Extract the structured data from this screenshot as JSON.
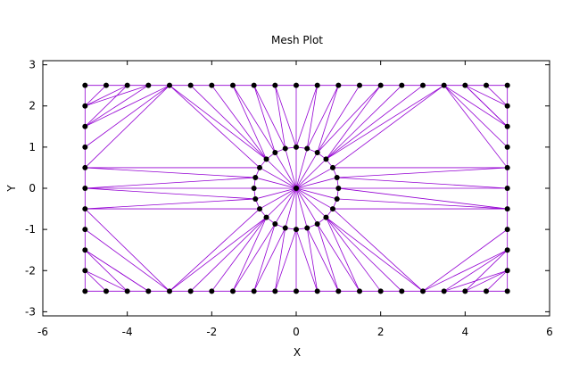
{
  "chart_data": {
    "type": "scatter",
    "title": "Mesh Plot",
    "xlabel": "X",
    "ylabel": "Y",
    "xlim": [
      -6,
      6
    ],
    "ylim": [
      -3.1,
      3.1
    ],
    "xticks": [
      -6,
      -4,
      -2,
      0,
      2,
      4,
      6
    ],
    "yticks": [
      -3,
      -2,
      -1,
      0,
      1,
      2,
      3
    ],
    "grid": false,
    "edge_color": "#9400d3",
    "node_color": "#000000",
    "boundary_nodes": {
      "top": [
        [
          -5,
          2.5
        ],
        [
          -4.5,
          2.5
        ],
        [
          -4,
          2.5
        ],
        [
          -3.5,
          2.5
        ],
        [
          -3,
          2.5
        ],
        [
          -2.5,
          2.5
        ],
        [
          -2,
          2.5
        ],
        [
          -1.5,
          2.5
        ],
        [
          -1,
          2.5
        ],
        [
          -0.5,
          2.5
        ],
        [
          0,
          2.5
        ],
        [
          0.5,
          2.5
        ],
        [
          1,
          2.5
        ],
        [
          1.5,
          2.5
        ],
        [
          2,
          2.5
        ],
        [
          2.5,
          2.5
        ],
        [
          3,
          2.5
        ],
        [
          3.5,
          2.5
        ],
        [
          4,
          2.5
        ],
        [
          4.5,
          2.5
        ],
        [
          5,
          2.5
        ]
      ],
      "bottom": [
        [
          -5,
          -2.5
        ],
        [
          -4.5,
          -2.5
        ],
        [
          -4,
          -2.5
        ],
        [
          -3.5,
          -2.5
        ],
        [
          -3,
          -2.5
        ],
        [
          -2.5,
          -2.5
        ],
        [
          -2,
          -2.5
        ],
        [
          -1.5,
          -2.5
        ],
        [
          -1,
          -2.5
        ],
        [
          -0.5,
          -2.5
        ],
        [
          0,
          -2.5
        ],
        [
          0.5,
          -2.5
        ],
        [
          1,
          -2.5
        ],
        [
          1.5,
          -2.5
        ],
        [
          2,
          -2.5
        ],
        [
          2.5,
          -2.5
        ],
        [
          3,
          -2.5
        ],
        [
          3.5,
          -2.5
        ],
        [
          4,
          -2.5
        ],
        [
          4.5,
          -2.5
        ],
        [
          5,
          -2.5
        ]
      ],
      "left": [
        [
          -5,
          2
        ],
        [
          -5,
          1.5
        ],
        [
          -5,
          1
        ],
        [
          -5,
          0.5
        ],
        [
          -5,
          0
        ],
        [
          -5,
          -0.5
        ],
        [
          -5,
          -1
        ],
        [
          -5,
          -1.5
        ],
        [
          -5,
          -2
        ]
      ],
      "right": [
        [
          5,
          2
        ],
        [
          5,
          1.5
        ],
        [
          5,
          1
        ],
        [
          5,
          0.5
        ],
        [
          5,
          0
        ],
        [
          5,
          -0.5
        ],
        [
          5,
          -1
        ],
        [
          5,
          -1.5
        ],
        [
          5,
          -2
        ]
      ]
    },
    "circle_nodes": [
      [
        1,
        0
      ],
      [
        0.966,
        0.259
      ],
      [
        0.866,
        0.5
      ],
      [
        0.707,
        0.707
      ],
      [
        0.5,
        0.866
      ],
      [
        0.259,
        0.966
      ],
      [
        0,
        1
      ],
      [
        -0.259,
        0.966
      ],
      [
        -0.5,
        0.866
      ],
      [
        -0.707,
        0.707
      ],
      [
        -0.866,
        0.5
      ],
      [
        -0.966,
        0.259
      ],
      [
        -1,
        0
      ],
      [
        -0.966,
        -0.259
      ],
      [
        -0.866,
        -0.5
      ],
      [
        -0.707,
        -0.707
      ],
      [
        -0.5,
        -0.866
      ],
      [
        -0.259,
        -0.966
      ],
      [
        0,
        -1
      ],
      [
        0.259,
        -0.966
      ],
      [
        0.5,
        -0.866
      ],
      [
        0.707,
        -0.707
      ],
      [
        0.866,
        -0.5
      ],
      [
        0.966,
        -0.259
      ]
    ],
    "center_node": [
      0,
      0
    ]
  }
}
